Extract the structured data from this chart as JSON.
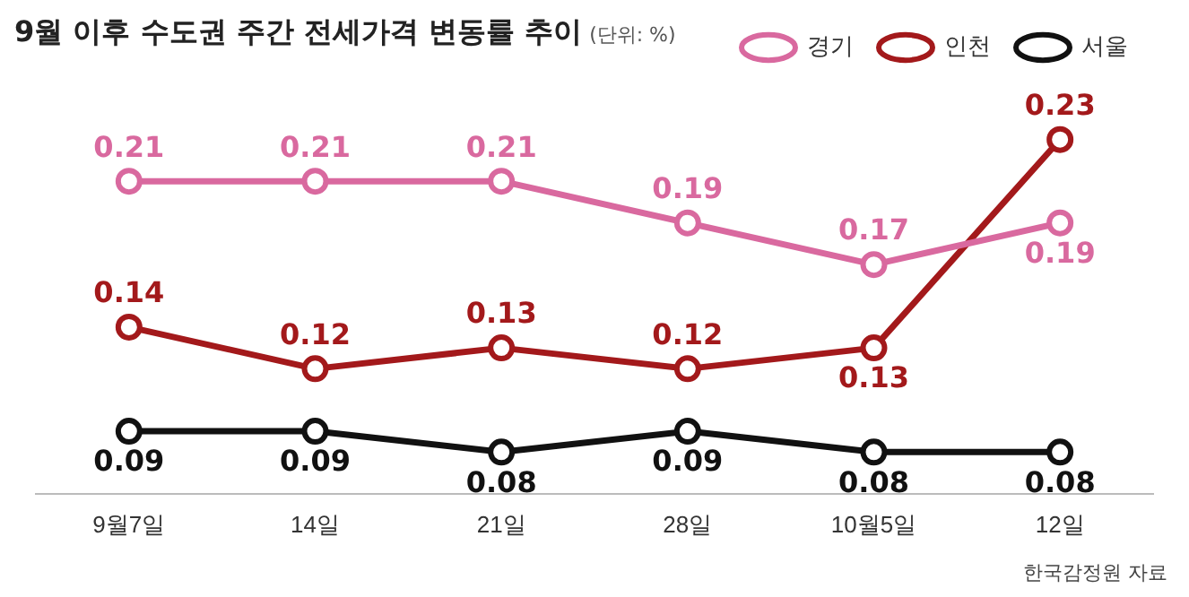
{
  "chart_data": {
    "type": "line",
    "title": "9월 이후 수도권 주간 전세가격 변동률 추이",
    "subtitle": "(단위: %)",
    "categories": [
      "9월7일",
      "14일",
      "21일",
      "28일",
      "10월5일",
      "12일"
    ],
    "series": [
      {
        "name": "경기",
        "color": "#d9699f",
        "values": [
          0.21,
          0.21,
          0.21,
          0.19,
          0.17,
          0.19
        ]
      },
      {
        "name": "인천",
        "color": "#a3191b",
        "values": [
          0.14,
          0.12,
          0.13,
          0.12,
          0.13,
          0.23
        ]
      },
      {
        "name": "서울",
        "color": "#111111",
        "values": [
          0.09,
          0.09,
          0.08,
          0.09,
          0.08,
          0.08
        ]
      }
    ],
    "tick_labels": "x",
    "grid": false,
    "legend": "top right",
    "marker": "circle",
    "line_style": "solid",
    "data_labels": true,
    "annotations": [
      "한국감정원 자료"
    ]
  }
}
